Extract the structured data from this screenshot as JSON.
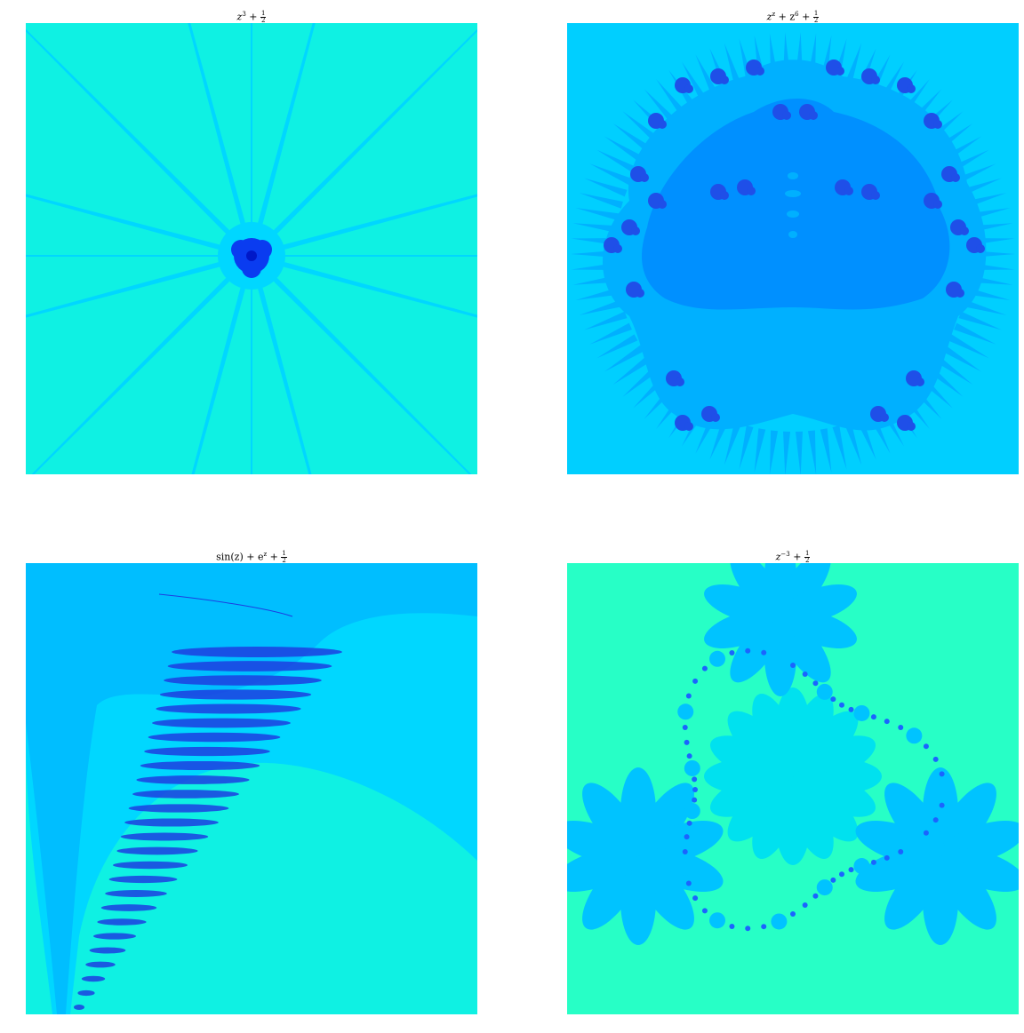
{
  "panels": [
    {
      "title_main": "z",
      "title_exp": "3",
      "title_tail": " +",
      "frac_num": "1",
      "frac_den": "2"
    },
    {
      "title_main": "z",
      "title_exp": "z",
      "title_mid": " + z",
      "title_exp2": "6",
      "title_tail": " +",
      "frac_num": "1",
      "frac_den": "2"
    },
    {
      "title_main": "sin(z) + e",
      "title_exp": "z",
      "title_tail": " +",
      "frac_num": "1",
      "frac_den": "2"
    },
    {
      "title_main": "z",
      "title_exp": "−3",
      "title_tail": " +",
      "frac_num": "1",
      "frac_den": "2"
    }
  ],
  "colors": {
    "p1_bg": "#0ff1e3",
    "p1_ray": "#00d7ff",
    "p1_core": "#0a3cf0",
    "p1_core_dark": "#0018c8",
    "p2_bg": "#00cfff",
    "p2_mid": "#00b0ff",
    "p2_inner": "#0090ff",
    "p2_dark": "#1f4fe8",
    "p3_bg": "#0ff1e3",
    "p3_band": "#00d7ff",
    "p3_band2": "#00beff",
    "p3_dark": "#1c3ee0",
    "p4_bg": "#27ffc6",
    "p4_flower": "#00c3ff",
    "p4_flower_center": "#00e1ef",
    "p4_dot": "#1b64ff"
  }
}
